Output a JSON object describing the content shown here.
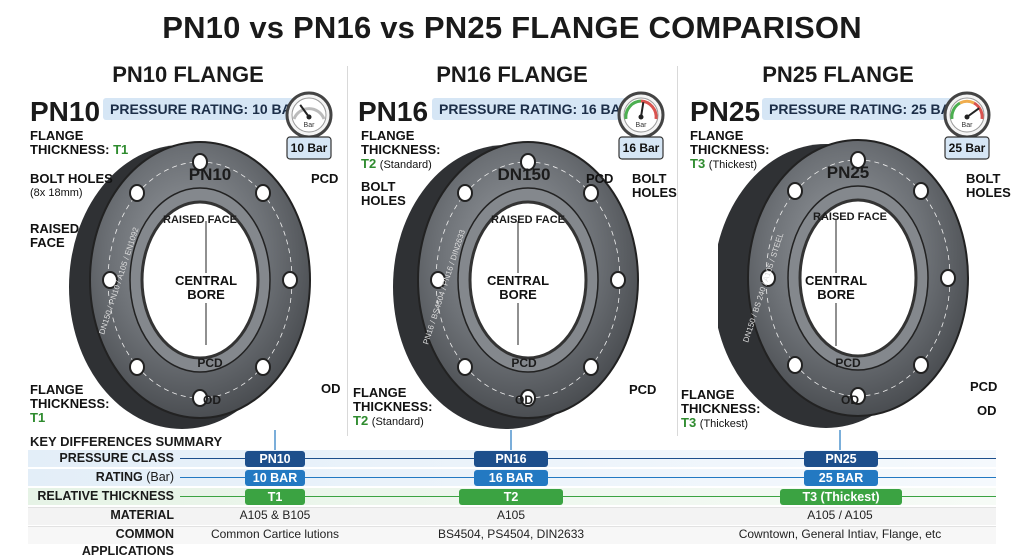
{
  "title": "PN10 vs PN16 vs PN25 FLANGE COMPARISON",
  "colors": {
    "navy": "#1d4f8c",
    "blue": "#2379c2",
    "green": "#3ba342",
    "badge": "#d6e6f5",
    "steel": "#4d5054"
  },
  "panels": [
    {
      "heading": "PN10 FLANGE",
      "code": "PN10",
      "rating": "PRESSURE RATING: 10 BAR",
      "gauge_unit": "Bar",
      "gauge_value": "10 Bar",
      "gauge_level": 0.3,
      "face_stamp": "PN10",
      "rim_text": "DN150 / PN10 / A105 / EN1092",
      "raised_face": "RAISED FACE",
      "central_bore": [
        "CENTRAL",
        "BORE"
      ],
      "pcd": "PCD",
      "od": "OD",
      "labels": {
        "thick_top": [
          "FLANGE",
          "THICKNESS: "
        ],
        "thick_top_value": "T1",
        "bolt": [
          "BOLT HOLES"
        ],
        "bolt_note": "(8x 18mm)",
        "raised": [
          "RAISED",
          "FACE"
        ],
        "pcd_side": "PCD",
        "od_side": "OD",
        "thick_bottom": [
          "FLANGE",
          "THICKNESS:"
        ],
        "thick_bottom_value": "T1"
      }
    },
    {
      "heading": "PN16 FLANGE",
      "code": "PN16",
      "rating": "PRESSURE RATING: 16 BAR",
      "gauge_unit": "Bar",
      "gauge_value": "16 Bar",
      "gauge_level": 0.55,
      "face_stamp": "DN150",
      "rim_text": "PN16 / BS4504 / PN16 / DIN2633",
      "raised_face": "RAISED FACE",
      "central_bore": [
        "CENTRAL",
        "BORE"
      ],
      "pcd": "PCD",
      "od": "OD",
      "labels": {
        "thick_top": [
          "FLANGE",
          "THICKNESS:"
        ],
        "thick_top_value": "T2",
        "thick_top_note": "(Standard)",
        "bolt": [
          "BOLT",
          "HOLES"
        ],
        "bolt_right": [
          "BOLT",
          "HOLES"
        ],
        "pcd_right": "PCD",
        "pcd_side": "PCD",
        "thick_bottom": [
          "FLANGE",
          "THICKNESS:"
        ],
        "thick_bottom_value": "T2",
        "thick_bottom_note": "(Standard)"
      }
    },
    {
      "heading": "PN25 FLANGE",
      "code": "PN25",
      "rating": "PRESSURE RATING: 25 BAR",
      "gauge_unit": "Bar",
      "gauge_value": "25 Bar",
      "gauge_level": 0.8,
      "face_stamp": "PN25",
      "rim_text": "DN150 / BS 240 / A105 / STEEL",
      "raised_face": "RAISED FACE",
      "central_bore": [
        "CENTRAL",
        "BORE"
      ],
      "pcd": "PCD",
      "od": "OD",
      "labels": {
        "thick_top": [
          "FLANGE",
          "THICKNESS:"
        ],
        "thick_top_value": "T3",
        "thick_top_note": "(Thickest)",
        "bolt_right": [
          "BOLT",
          "HOLES"
        ],
        "pcd_side": "PCD",
        "od_side": "OD",
        "thick_bottom": [
          "FLANGE",
          "THICKNESS:"
        ],
        "thick_bottom_value": "T3",
        "thick_bottom_note": "(Thickest)"
      }
    }
  ],
  "summary": {
    "title": "KEY DIFFERENCES SUMMARY",
    "rows": [
      {
        "label": "PRESSURE CLASS",
        "note": "",
        "values": [
          "PN10",
          "PN16",
          "PN25"
        ],
        "style": "navy"
      },
      {
        "label": "RATING",
        "note": " (Bar)",
        "values": [
          "10 BAR",
          "16 BAR",
          "25 BAR"
        ],
        "style": "blue"
      },
      {
        "label": "RELATIVE THICKNESS",
        "note": "",
        "values": [
          "T1",
          "T2",
          "T3 (Thickest)"
        ],
        "style": "green",
        "levels": [
          1,
          2,
          3
        ]
      },
      {
        "label": "MATERIAL",
        "note": "",
        "values": [
          "A105 & B105",
          "A105",
          "A105 / A105"
        ],
        "style": "plain"
      },
      {
        "label": "COMMON APPLICATIONS",
        "note": "",
        "values": [
          "Common Cartice lutions",
          "BS4504, PS4504, DIN2633",
          "Cowntown, General Intiav, Flange, etc"
        ],
        "style": "plain"
      }
    ]
  }
}
